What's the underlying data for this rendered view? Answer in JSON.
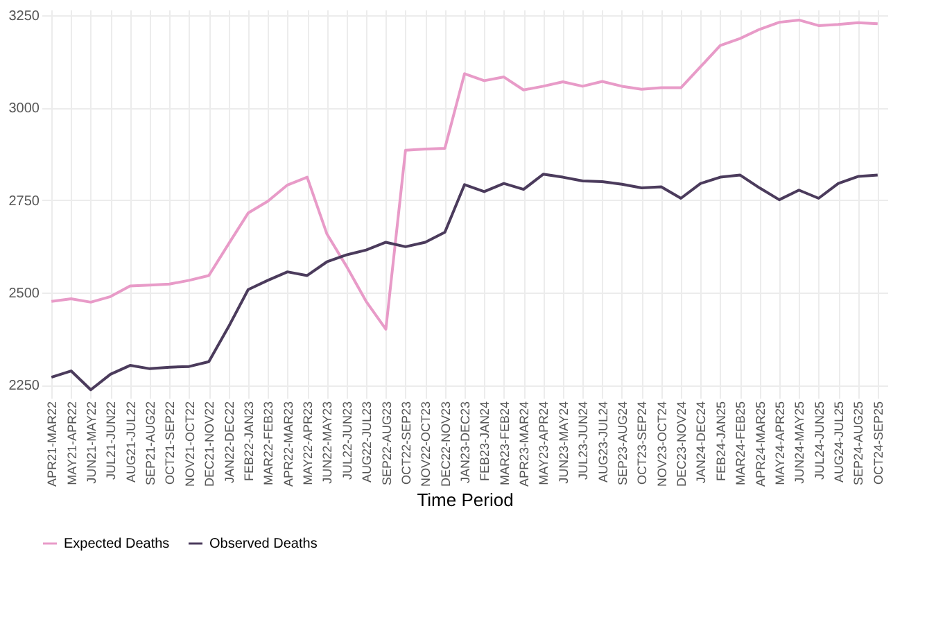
{
  "chart_data": {
    "type": "line",
    "xlabel": "Time Period",
    "categories": [
      "APR21-MAR22",
      "MAY21-APR22",
      "JUN21-MAY22",
      "JUL21-JUN22",
      "AUG21-JUL22",
      "SEP21-AUG22",
      "OCT21-SEP22",
      "NOV21-OCT22",
      "DEC21-NOV22",
      "JAN22-DEC22",
      "FEB22-JAN23",
      "MAR22-FEB23",
      "APR22-MAR23",
      "MAY22-APR23",
      "JUN22-MAY23",
      "JUL22-JUN23",
      "AUG22-JUL23",
      "SEP22-AUG23",
      "OCT22-SEP23",
      "NOV22-OCT23",
      "DEC22-NOV23",
      "JAN23-DEC23",
      "FEB23-JAN24",
      "MAR23-FEB24",
      "APR23-MAR24",
      "MAY23-APR24",
      "JUN23-MAY24",
      "JUL23-JUN24",
      "AUG23-JUL24",
      "SEP23-AUG24",
      "OCT23-SEP24",
      "NOV23-OCT24",
      "DEC23-NOV24",
      "JAN24-DEC24",
      "FEB24-JAN25",
      "MAR24-FEB25",
      "APR24-MAR25",
      "MAY24-APR25",
      "JUN24-MAY25",
      "JUL24-JUN25",
      "AUG24-JUL25",
      "SEP24-AUG25",
      "OCT24-SEP25"
    ],
    "series": [
      {
        "name": "Expected Deaths",
        "color": "#e89bc8",
        "values": [
          2476,
          2483,
          2474,
          2489,
          2518,
          2520,
          2523,
          2533,
          2546,
          2631,
          2715,
          2747,
          2791,
          2812,
          2659,
          2571,
          2476,
          2401,
          2885,
          2888,
          2890,
          3092,
          3073,
          3083,
          3048,
          3058,
          3070,
          3058,
          3071,
          3058,
          3050,
          3054,
          3054,
          3111,
          3168,
          3187,
          3212,
          3231,
          3237,
          3222,
          3225,
          3230,
          3227
        ]
      },
      {
        "name": "Observed Deaths",
        "color": "#4b3b5c",
        "values": [
          2271,
          2288,
          2237,
          2279,
          2303,
          2294,
          2298,
          2300,
          2313,
          2407,
          2508,
          2533,
          2556,
          2546,
          2583,
          2602,
          2615,
          2636,
          2624,
          2636,
          2663,
          2792,
          2773,
          2795,
          2779,
          2820,
          2812,
          2802,
          2800,
          2793,
          2783,
          2786,
          2755,
          2795,
          2812,
          2818,
          2783,
          2751,
          2777,
          2755,
          2795,
          2814,
          2818
        ]
      }
    ],
    "ylim": [
      2215,
      3265
    ],
    "yticks": [
      2250,
      2500,
      2750,
      3000,
      3250
    ],
    "grid": true,
    "legend": "bottom",
    "line_style": "solid",
    "marker": "none"
  }
}
